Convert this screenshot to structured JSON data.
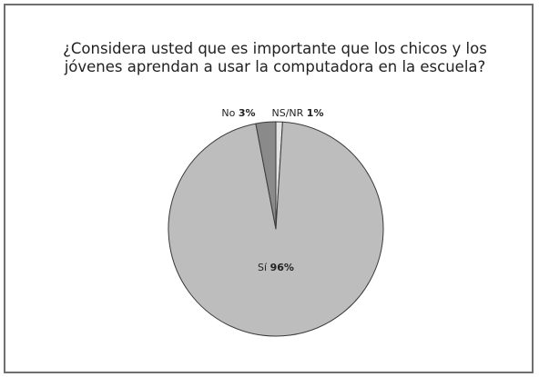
{
  "chart_data": {
    "type": "pie",
    "title_lines": [
      "¿Considera usted que es importante que los chicos y los",
      "jóvenes aprendan a usar la computadora en la escuela?"
    ],
    "slices": [
      {
        "label": "Sí",
        "value": 96,
        "value_text": "96%",
        "color": "#bdbdbd"
      },
      {
        "label": "No",
        "value": 3,
        "value_text": "3%",
        "color": "#8a8a8a"
      },
      {
        "label": "NS/NR",
        "value": 1,
        "value_text": "1%",
        "color": "#e4e4e4"
      }
    ]
  },
  "colors": {
    "border": "#6f6f6f",
    "stroke": "#3a3a3a",
    "background": "#ffffff"
  }
}
